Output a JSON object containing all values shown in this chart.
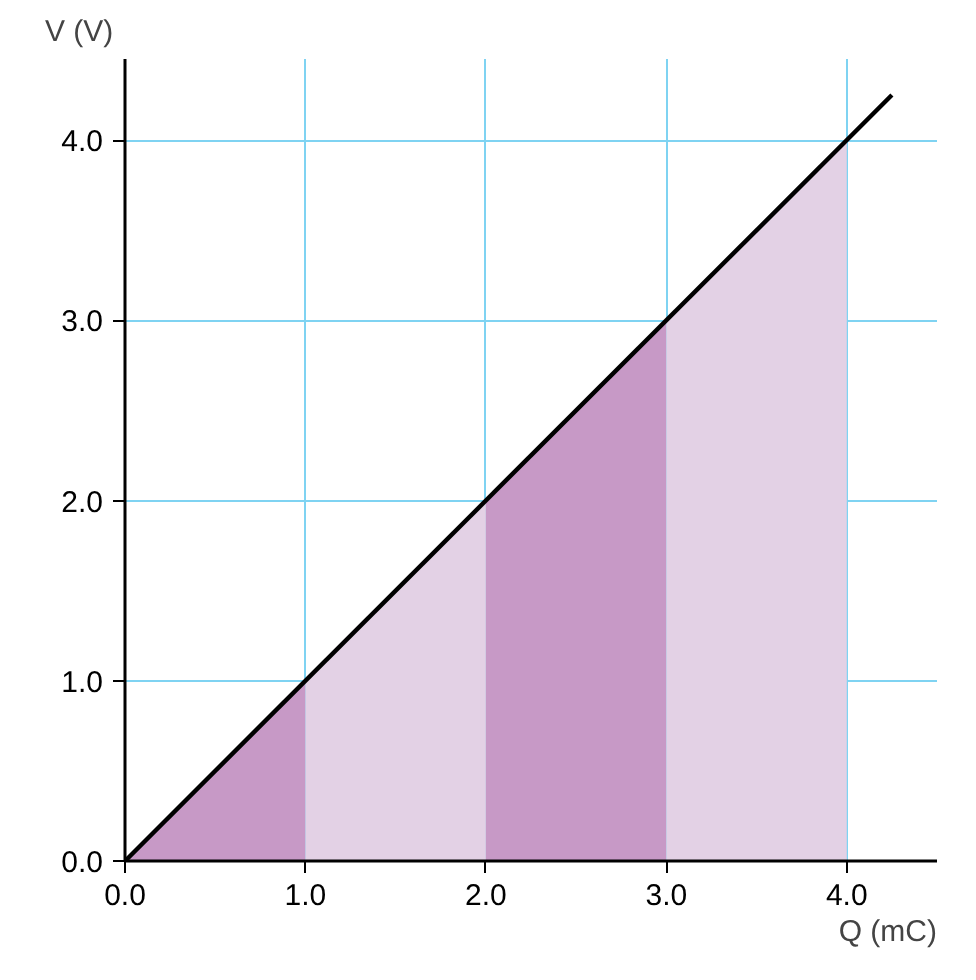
{
  "chart_data": {
    "type": "line",
    "xlabel": "Q (mC)",
    "ylabel": "V (V)",
    "xlim": [
      0,
      4.5
    ],
    "ylim": [
      0,
      4.45
    ],
    "xticks": [
      {
        "value": 0,
        "label": "0.0"
      },
      {
        "value": 1,
        "label": "1.0"
      },
      {
        "value": 2,
        "label": "2.0"
      },
      {
        "value": 3,
        "label": "3.0"
      },
      {
        "value": 4,
        "label": "4.0"
      }
    ],
    "yticks": [
      {
        "value": 0,
        "label": "0.0"
      },
      {
        "value": 1,
        "label": "1.0"
      },
      {
        "value": 2,
        "label": "2.0"
      },
      {
        "value": 3,
        "label": "3.0"
      },
      {
        "value": 4,
        "label": "4.0"
      }
    ],
    "grid": true,
    "marker": "none",
    "line_style": "solid",
    "series": [
      {
        "type": "area",
        "color": "#c799c6",
        "x": [
          0,
          1
        ],
        "values": [
          0,
          1
        ]
      },
      {
        "type": "area",
        "color": "#e3d1e5",
        "x": [
          1,
          2
        ],
        "values": [
          1,
          2
        ]
      },
      {
        "type": "area",
        "color": "#c799c6",
        "x": [
          2,
          3
        ],
        "values": [
          2,
          3
        ]
      },
      {
        "type": "area",
        "color": "#e3d1e5",
        "x": [
          3,
          4
        ],
        "values": [
          3,
          4
        ]
      },
      {
        "color": "#000000",
        "x": [
          0,
          4.25
        ],
        "values": [
          0,
          4.25
        ]
      }
    ]
  }
}
